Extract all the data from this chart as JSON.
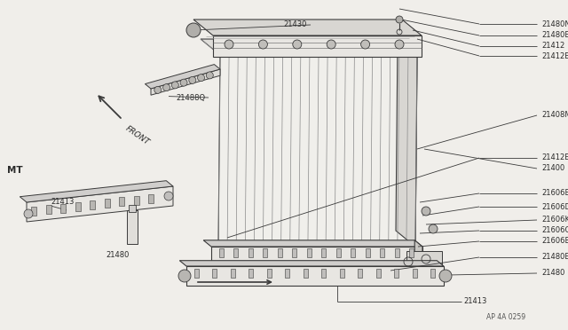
{
  "bg_color": "#f0eeea",
  "line_color": "#3a3a3a",
  "text_color": "#2a2a2a",
  "part_number_code": "AP 4A 0259",
  "label_MT": "MT",
  "label_FRONT": "FRONT",
  "fig_w": 6.4,
  "fig_h": 3.72,
  "dpi": 100
}
